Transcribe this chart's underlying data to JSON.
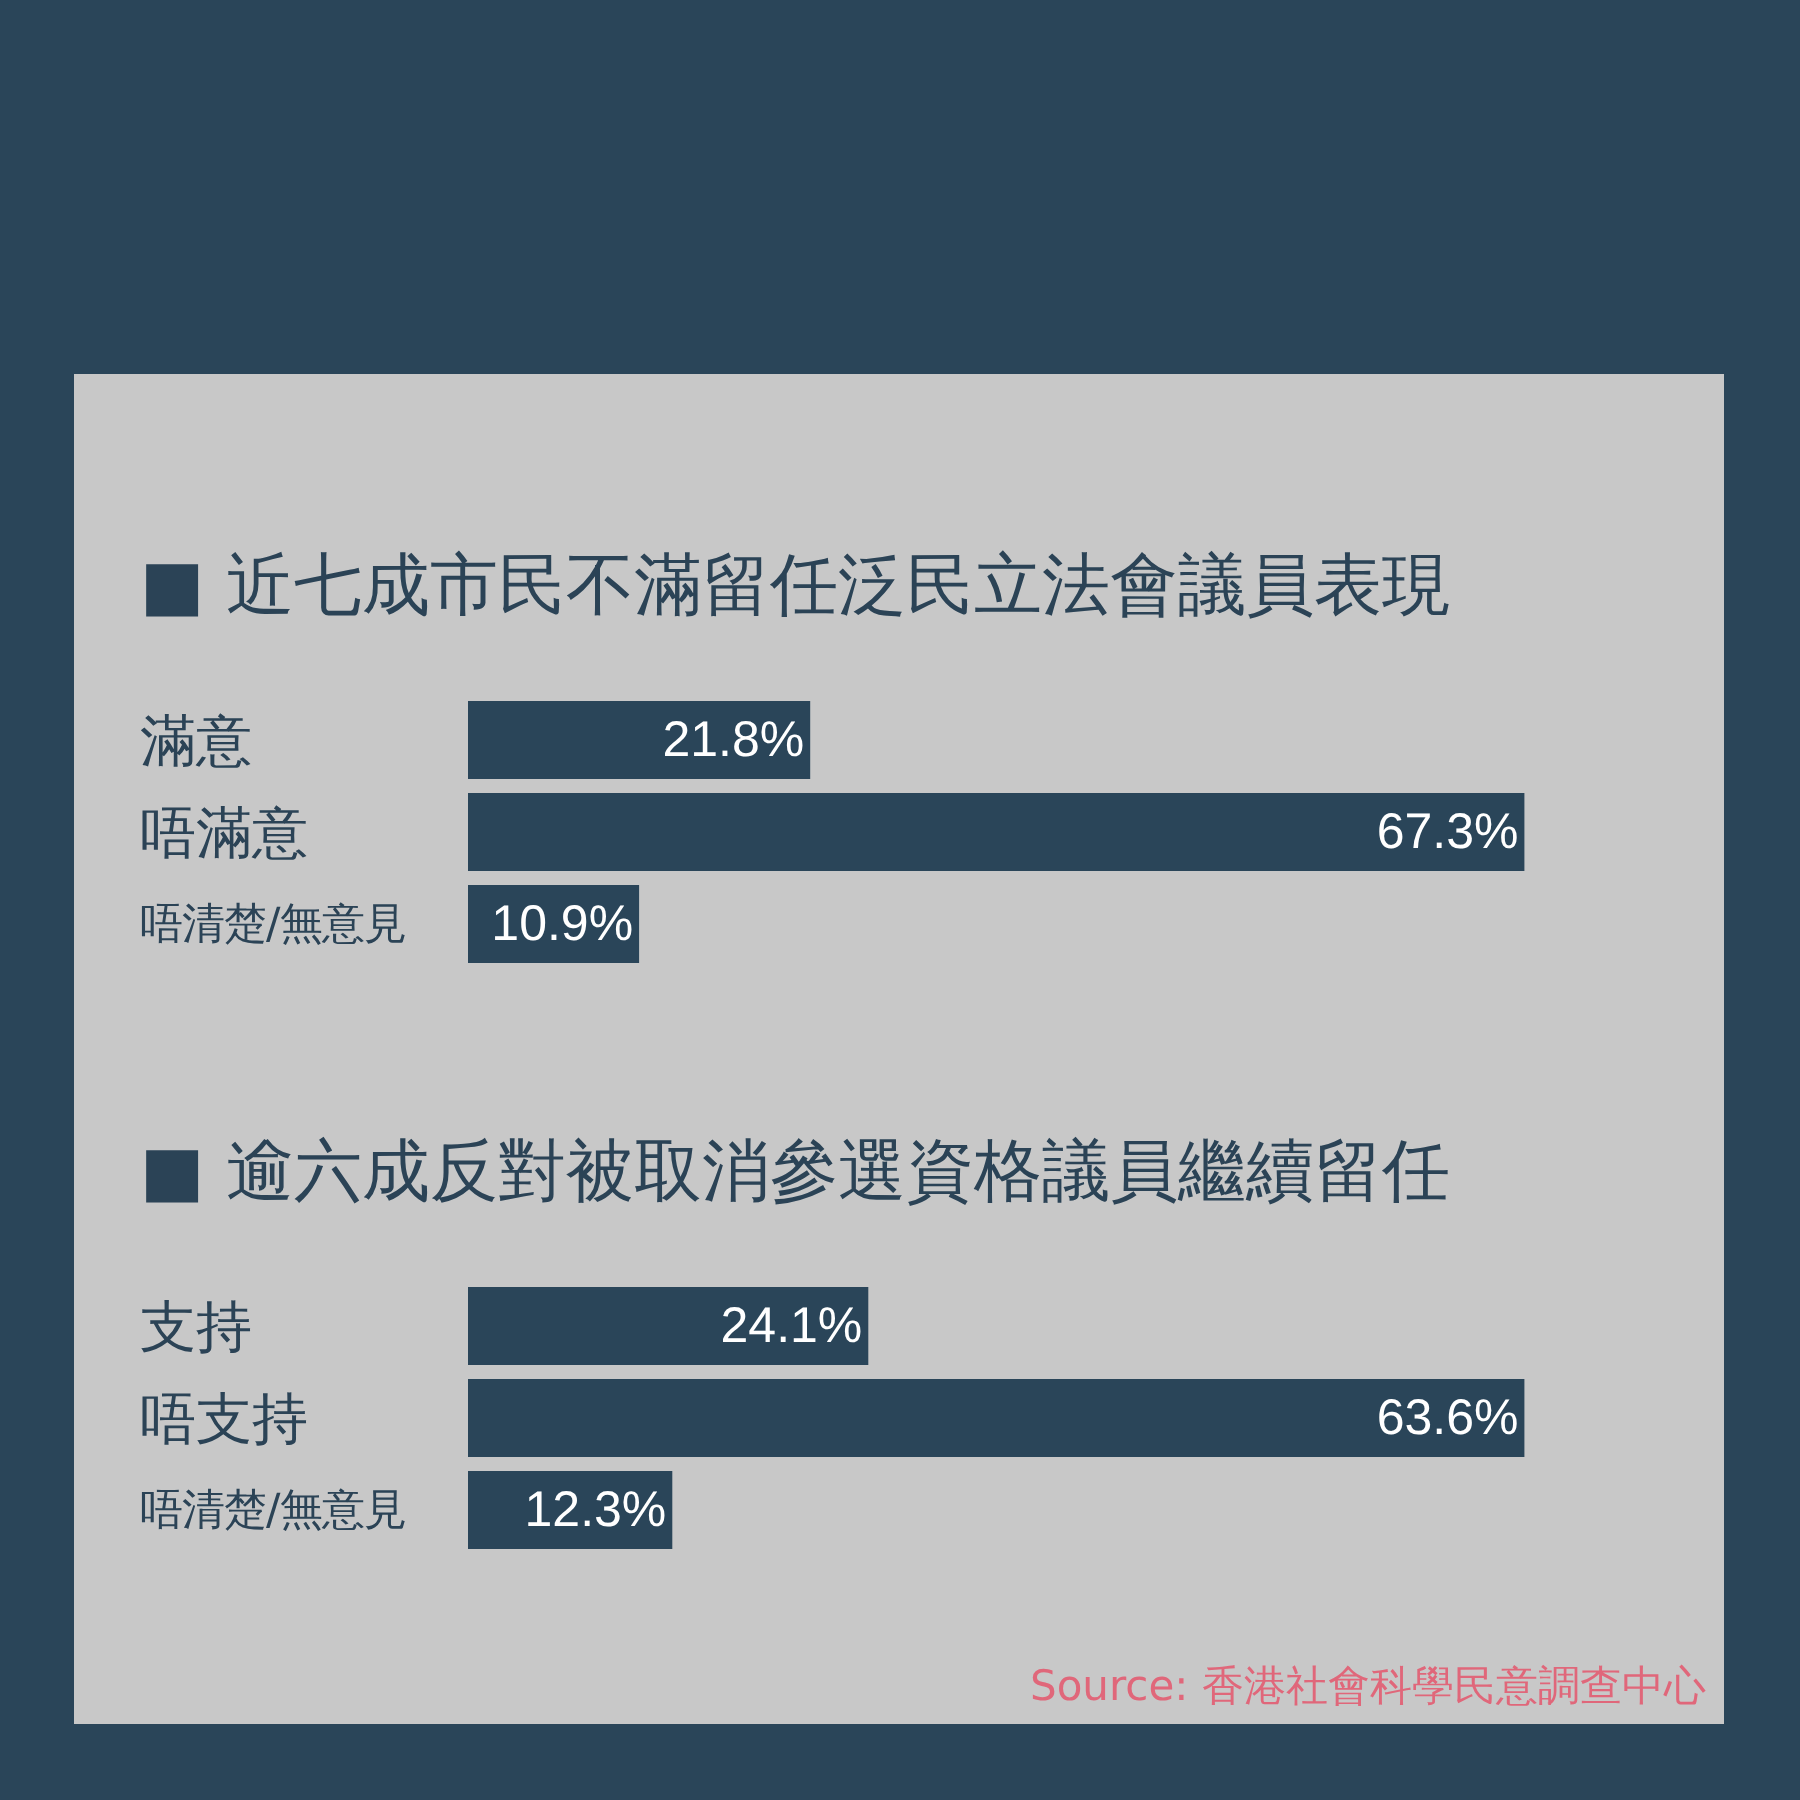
{
  "chart_data": [
    {
      "type": "bar",
      "orientation": "horizontal",
      "title": "■ 近七成市民不滿留任泛民立法會議員表現",
      "categories": [
        "滿意",
        "唔滿意",
        "唔清楚/無意見"
      ],
      "values": [
        21.8,
        67.3,
        10.9
      ],
      "value_labels": [
        "21.8%",
        "67.3%",
        "10.9%"
      ],
      "color": "#2a4559",
      "tick_labels": "y"
    },
    {
      "type": "bar",
      "orientation": "horizontal",
      "title": "■ 逾六成反對被取消參選資格議員繼續留任",
      "categories": [
        "支持",
        "唔支持",
        "唔清楚/無意見"
      ],
      "values": [
        24.1,
        63.6,
        12.3
      ],
      "value_labels": [
        "24.1%",
        "63.6%",
        "12.3%"
      ],
      "color": "#2a4559",
      "tick_labels": "y",
      "annotations": [
        "Source: 香港社會科學民意調查中心"
      ]
    }
  ]
}
